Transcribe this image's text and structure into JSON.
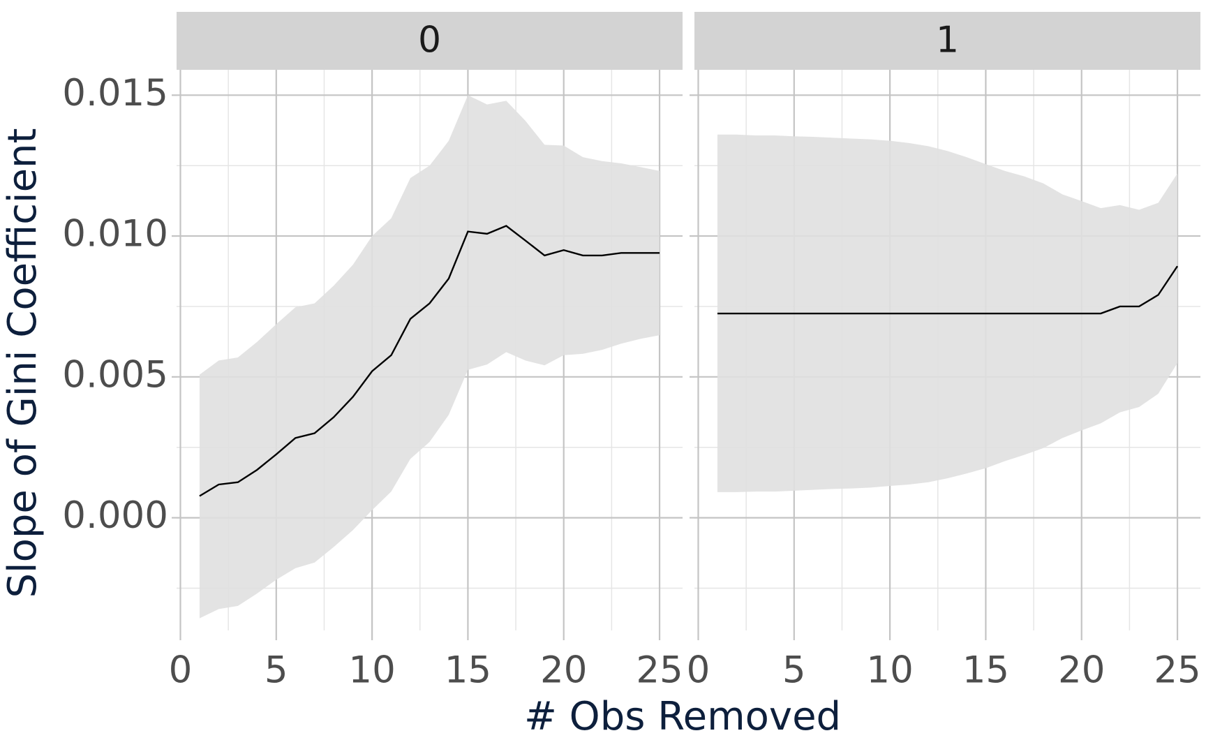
{
  "chart_data": {
    "type": "line",
    "x_label": "# Obs Removed",
    "y_label": "Slope of Gini Coefficient",
    "x": [
      1,
      2,
      3,
      4,
      5,
      6,
      7,
      8,
      9,
      10,
      11,
      12,
      13,
      14,
      15,
      16,
      17,
      18,
      19,
      20,
      21,
      22,
      23,
      24,
      25
    ],
    "xlim": [
      -0.2,
      26.2
    ],
    "ylim": [
      -0.004,
      0.0159
    ],
    "xticks": [
      0,
      5,
      10,
      15,
      20,
      25
    ],
    "yticks": [
      {
        "value": 0,
        "label": "0.000"
      },
      {
        "value": 0.005,
        "label": "0.005"
      },
      {
        "value": 0.01,
        "label": "0.010"
      },
      {
        "value": 0.015,
        "label": "0.015"
      }
    ],
    "grid": true,
    "line_color": "#000000",
    "band_color": "#e0e0e0",
    "panels": [
      {
        "title": "0",
        "values": [
          0.00077,
          0.00118,
          0.00126,
          0.0017,
          0.00225,
          0.00283,
          0.003,
          0.00357,
          0.00429,
          0.0052,
          0.00577,
          0.00706,
          0.00761,
          0.00849,
          0.01016,
          0.01008,
          0.01036,
          0.00984,
          0.00931,
          0.0095,
          0.00931,
          0.00931,
          0.0094,
          0.0094,
          0.0094
        ],
        "upper": [
          0.00508,
          0.00558,
          0.00569,
          0.00624,
          0.00687,
          0.00747,
          0.00761,
          0.00824,
          0.00898,
          0.01,
          0.01063,
          0.01206,
          0.0125,
          0.01338,
          0.015,
          0.01467,
          0.0148,
          0.01409,
          0.01324,
          0.01321,
          0.0128,
          0.01266,
          0.01258,
          0.01245,
          0.01231
        ],
        "lower": [
          -0.00357,
          -0.00324,
          -0.00313,
          -0.00269,
          -0.0022,
          -0.00179,
          -0.00159,
          -0.00104,
          -0.00044,
          0.00027,
          0.00093,
          0.00209,
          0.00269,
          0.00365,
          0.00525,
          0.00544,
          0.00588,
          0.00558,
          0.00541,
          0.00577,
          0.00582,
          0.00596,
          0.00618,
          0.00635,
          0.00648
        ]
      },
      {
        "title": "1",
        "values": [
          0.00725,
          0.00725,
          0.00725,
          0.00725,
          0.00725,
          0.00725,
          0.00725,
          0.00725,
          0.00725,
          0.00725,
          0.00725,
          0.00725,
          0.00725,
          0.00725,
          0.00725,
          0.00725,
          0.00725,
          0.00725,
          0.00725,
          0.00725,
          0.00725,
          0.0075,
          0.0075,
          0.00791,
          0.00893
        ],
        "upper": [
          0.0136,
          0.0136,
          0.01357,
          0.01357,
          0.01354,
          0.01352,
          0.01349,
          0.01346,
          0.01343,
          0.01338,
          0.0133,
          0.01319,
          0.01302,
          0.0128,
          0.01255,
          0.01231,
          0.01212,
          0.01187,
          0.01148,
          0.01124,
          0.01099,
          0.0111,
          0.01093,
          0.01118,
          0.01222
        ],
        "lower": [
          0.00091,
          0.00091,
          0.00093,
          0.00093,
          0.00096,
          0.00099,
          0.00102,
          0.00104,
          0.00107,
          0.00113,
          0.00118,
          0.00126,
          0.0014,
          0.00157,
          0.00176,
          0.00201,
          0.00223,
          0.00247,
          0.00283,
          0.0031,
          0.00335,
          0.00374,
          0.00393,
          0.0044,
          0.00549
        ]
      }
    ]
  }
}
